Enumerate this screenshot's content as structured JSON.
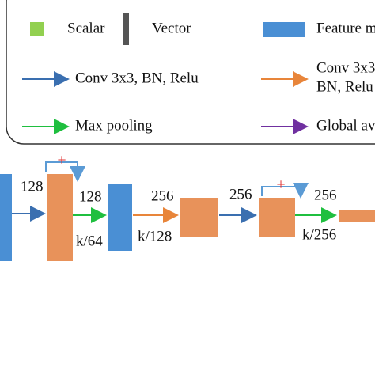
{
  "legend": {
    "scalar": "Scalar",
    "vector": "Vector",
    "feature_map": "Feature m",
    "conv_blue": "Conv 3x3, BN, Relu",
    "conv_orange": [
      "Conv 3x3",
      "BN, Relu"
    ],
    "max_pooling": "Max pooling",
    "global": "Global av"
  },
  "diagram": {
    "labels": [
      "128",
      "128",
      "k/64",
      "256",
      "k/128",
      "256",
      "256",
      "k/256"
    ],
    "plus": [
      "+",
      "+"
    ]
  }
}
